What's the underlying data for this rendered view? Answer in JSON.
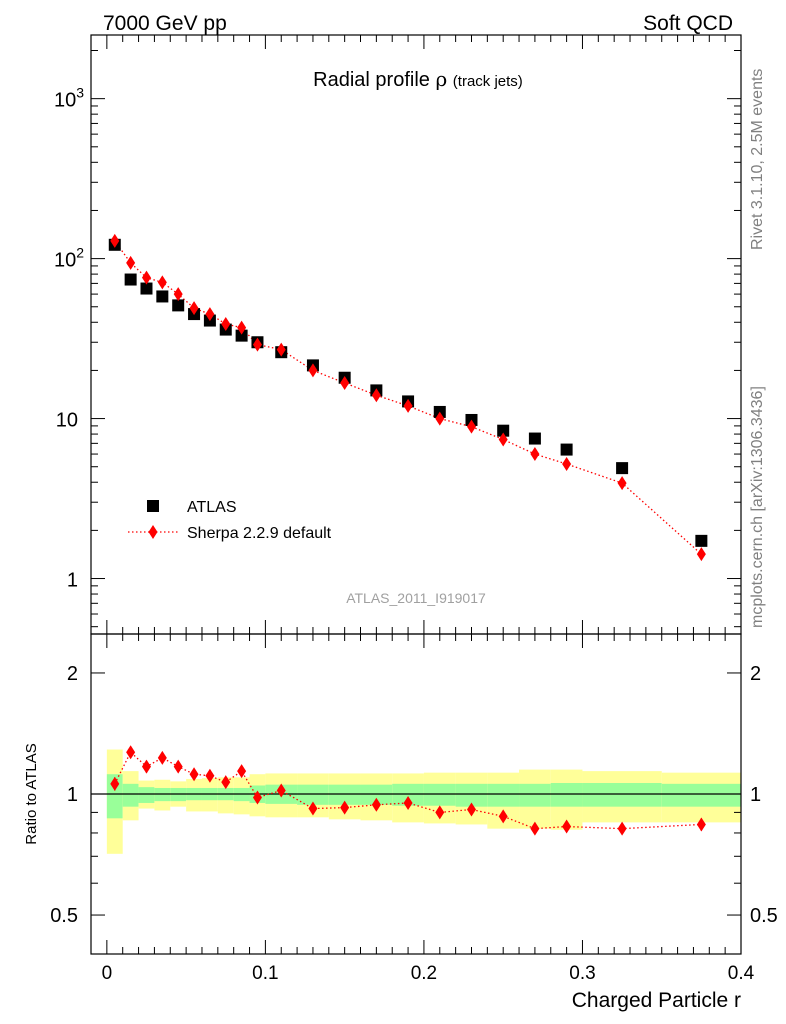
{
  "header": {
    "left": "7000 GeV pp",
    "right": "Soft QCD"
  },
  "side_labels": {
    "rivet": "Rivet 3.1.10,  2.5M events",
    "mcplots": "mcplots.cern.ch [arXiv:1306.3436]"
  },
  "colors": {
    "data": "#000000",
    "mc": "#ff0000",
    "band_inner": "#99ff99",
    "band_outer": "#ffff99"
  },
  "chart_data": [
    {
      "type": "scatter",
      "title": "Radial profile",
      "title_symbol": "ρ",
      "title_suffix": "(track jets)",
      "analysis": "ATLAS_2011_I919017",
      "xlabel": "",
      "ylabel": "",
      "yscale": "log",
      "xlim": [
        -0.01,
        0.4
      ],
      "ylim": [
        0.45,
        2500
      ],
      "y_ticks": [
        {
          "value": 1,
          "label": "1",
          "exp": ""
        },
        {
          "value": 10,
          "label": "10",
          "exp": ""
        },
        {
          "value": 100,
          "label": "10",
          "exp": "2"
        },
        {
          "value": 1000,
          "label": "10",
          "exp": "3"
        }
      ],
      "legend_position": "lower-left",
      "series": [
        {
          "name": "ATLAS",
          "marker": "square",
          "x": [
            0.005,
            0.015,
            0.025,
            0.035,
            0.045,
            0.055,
            0.065,
            0.075,
            0.085,
            0.095,
            0.11,
            0.13,
            0.15,
            0.17,
            0.19,
            0.21,
            0.23,
            0.25,
            0.27,
            0.29,
            0.325,
            0.375
          ],
          "y": [
            122,
            74,
            65,
            58,
            51,
            45,
            41,
            36,
            33,
            30,
            26,
            21.5,
            18,
            15,
            12.8,
            11,
            9.8,
            8.4,
            7.5,
            6.4,
            4.9,
            1.72
          ]
        },
        {
          "name": "Sherpa 2.2.9 default",
          "marker": "diamond",
          "line": "dotted",
          "x": [
            0.005,
            0.015,
            0.025,
            0.035,
            0.045,
            0.055,
            0.065,
            0.075,
            0.085,
            0.095,
            0.11,
            0.13,
            0.15,
            0.17,
            0.19,
            0.21,
            0.23,
            0.25,
            0.27,
            0.29,
            0.325,
            0.375
          ],
          "y": [
            129,
            94,
            76,
            71,
            60,
            49,
            45,
            39,
            37,
            29,
            27,
            20,
            16.7,
            14,
            12,
            10,
            8.9,
            7.4,
            6,
            5.2,
            3.95,
            1.42
          ]
        }
      ]
    },
    {
      "type": "scatter",
      "xlabel": "Charged Particle r",
      "ylabel": "Ratio to ATLAS",
      "yscale": "log",
      "xlim": [
        -0.01,
        0.4
      ],
      "ylim": [
        0.4,
        2.5
      ],
      "x_ticks": [
        {
          "value": 0,
          "label": "0"
        },
        {
          "value": 0.1,
          "label": "0.1"
        },
        {
          "value": 0.2,
          "label": "0.2"
        },
        {
          "value": 0.3,
          "label": "0.3"
        },
        {
          "value": 0.4,
          "label": "0.4"
        }
      ],
      "y_ticks": [
        {
          "value": 0.5,
          "label": "0.5"
        },
        {
          "value": 1,
          "label": "1"
        },
        {
          "value": 2,
          "label": "2"
        }
      ],
      "bands": {
        "x_edges": [
          0,
          0.01,
          0.02,
          0.03,
          0.04,
          0.05,
          0.06,
          0.07,
          0.08,
          0.09,
          0.1,
          0.12,
          0.14,
          0.16,
          0.18,
          0.2,
          0.22,
          0.24,
          0.26,
          0.28,
          0.3,
          0.35,
          0.4
        ],
        "inner_lo": [
          0.87,
          0.93,
          0.95,
          0.96,
          0.96,
          0.965,
          0.965,
          0.965,
          0.96,
          0.95,
          0.945,
          0.94,
          0.94,
          0.94,
          0.935,
          0.935,
          0.93,
          0.93,
          0.93,
          0.93,
          0.93,
          0.93
        ],
        "inner_hi": [
          1.12,
          1.06,
          1.04,
          1.035,
          1.035,
          1.035,
          1.035,
          1.035,
          1.035,
          1.05,
          1.055,
          1.055,
          1.055,
          1.055,
          1.06,
          1.06,
          1.06,
          1.06,
          1.06,
          1.065,
          1.065,
          1.06
        ],
        "outer_lo": [
          0.71,
          0.86,
          0.92,
          0.91,
          0.93,
          0.905,
          0.905,
          0.895,
          0.89,
          0.88,
          0.875,
          0.875,
          0.865,
          0.86,
          0.85,
          0.845,
          0.84,
          0.82,
          0.82,
          0.815,
          0.85,
          0.85
        ],
        "outer_hi": [
          1.29,
          1.14,
          1.08,
          1.085,
          1.075,
          1.09,
          1.095,
          1.1,
          1.1,
          1.12,
          1.125,
          1.125,
          1.125,
          1.125,
          1.125,
          1.13,
          1.13,
          1.13,
          1.15,
          1.15,
          1.14,
          1.13
        ]
      },
      "series": [
        {
          "name": "Sherpa 2.2.9 default",
          "marker": "diamond",
          "line": "dotted",
          "x": [
            0.005,
            0.015,
            0.025,
            0.035,
            0.045,
            0.055,
            0.065,
            0.075,
            0.085,
            0.095,
            0.11,
            0.13,
            0.15,
            0.17,
            0.19,
            0.21,
            0.23,
            0.25,
            0.27,
            0.29,
            0.325,
            0.375
          ],
          "y": [
            1.06,
            1.27,
            1.17,
            1.23,
            1.17,
            1.12,
            1.11,
            1.07,
            1.14,
            0.98,
            1.02,
            0.92,
            0.925,
            0.94,
            0.95,
            0.9,
            0.915,
            0.88,
            0.82,
            0.83,
            0.82,
            0.84
          ],
          "err": [
            0.04,
            0.04,
            0.04,
            0.04,
            0.035,
            0.035,
            0.035,
            0.035,
            0.035,
            0.03,
            0.025,
            0.025,
            0.025,
            0.025,
            0.025,
            0.025,
            0.025,
            0.025,
            0.025,
            0.025,
            0.02,
            0.03
          ]
        }
      ]
    }
  ]
}
